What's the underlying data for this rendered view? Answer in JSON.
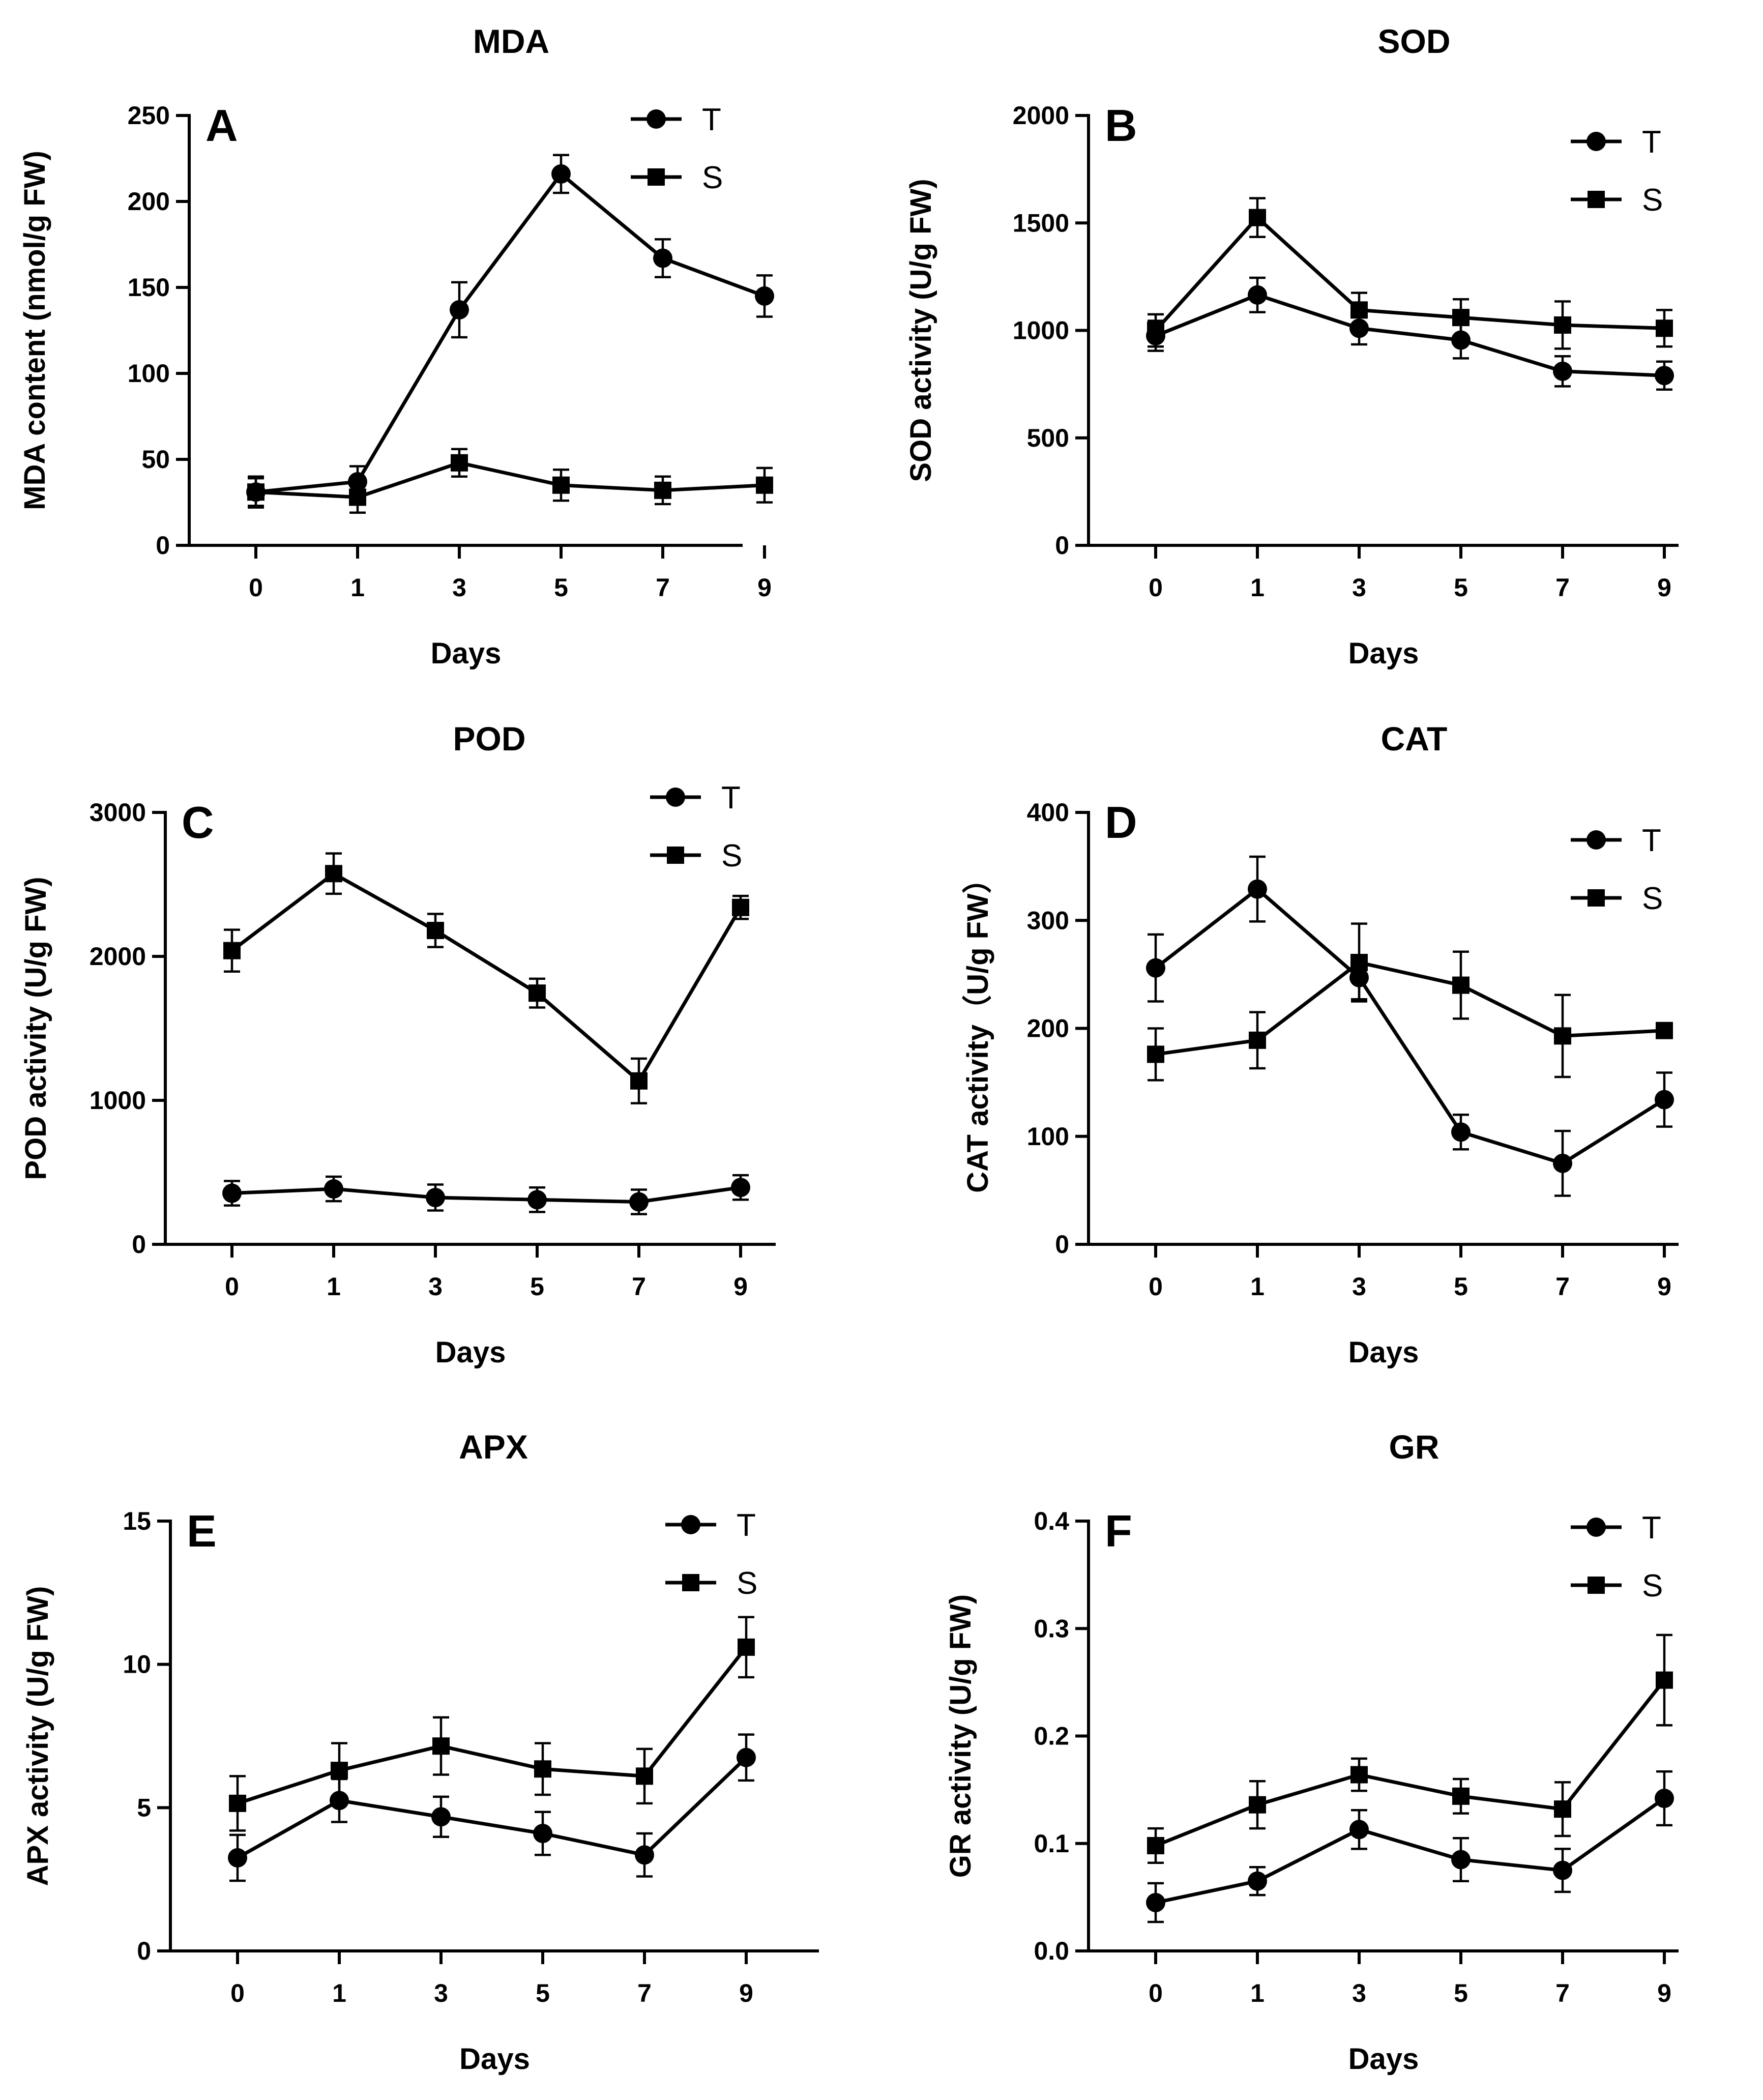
{
  "colors": {
    "line": "#000000",
    "background": "#ffffff"
  },
  "chart_data": [
    {
      "type": "line",
      "panel": "A",
      "title": "MDA",
      "xlabel": "Days",
      "ylabel": "MDA content (nmol/g FW)",
      "categories": [
        "0",
        "1",
        "3",
        "5",
        "7",
        "9"
      ],
      "ylim": [
        0,
        250
      ],
      "yticks": [
        0,
        50,
        100,
        150,
        200,
        250
      ],
      "legend_position": "top-right",
      "series": [
        {
          "name": "T",
          "marker": "circle",
          "values": [
            31,
            37,
            137,
            216,
            167,
            145
          ],
          "errors": [
            9,
            9,
            16,
            11,
            11,
            12
          ]
        },
        {
          "name": "S",
          "marker": "square",
          "values": [
            31,
            28,
            48,
            35,
            32,
            35
          ],
          "errors": [
            8,
            9,
            8,
            9,
            8,
            10
          ]
        }
      ]
    },
    {
      "type": "line",
      "panel": "B",
      "title": "SOD",
      "xlabel": "Days",
      "ylabel": "SOD activity (U/g FW)",
      "categories": [
        "0",
        "1",
        "3",
        "5",
        "7",
        "9"
      ],
      "ylim": [
        0,
        2000
      ],
      "yticks": [
        0,
        500,
        1000,
        1500,
        2000
      ],
      "legend_position": "top-right",
      "series": [
        {
          "name": "T",
          "marker": "circle",
          "values": [
            975,
            1165,
            1010,
            955,
            810,
            790
          ],
          "errors": [
            70,
            80,
            75,
            85,
            70,
            65
          ]
        },
        {
          "name": "S",
          "marker": "square",
          "values": [
            1000,
            1525,
            1095,
            1060,
            1025,
            1010
          ],
          "errors": [
            75,
            90,
            80,
            85,
            110,
            85
          ]
        }
      ]
    },
    {
      "type": "line",
      "panel": "C",
      "title": "POD",
      "xlabel": "Days",
      "ylabel": "POD activity (U/g FW)",
      "categories": [
        "0",
        "1",
        "3",
        "5",
        "7",
        "9"
      ],
      "ylim": [
        0,
        3000
      ],
      "yticks": [
        0,
        1000,
        2000,
        3000
      ],
      "legend_position": "top-right",
      "series": [
        {
          "name": "T",
          "marker": "circle",
          "values": [
            355,
            385,
            325,
            310,
            295,
            395
          ],
          "errors": [
            85,
            85,
            90,
            85,
            85,
            85
          ]
        },
        {
          "name": "S",
          "marker": "square",
          "values": [
            2040,
            2575,
            2180,
            1745,
            1135,
            2340
          ],
          "errors": [
            145,
            140,
            115,
            100,
            155,
            80
          ]
        }
      ]
    },
    {
      "type": "line",
      "panel": "D",
      "title": "CAT",
      "xlabel": "Days",
      "ylabel": "CAT activity（U/g FW）",
      "categories": [
        "0",
        "1",
        "3",
        "5",
        "7",
        "9"
      ],
      "ylim": [
        0,
        400
      ],
      "yticks": [
        0,
        100,
        200,
        300,
        400
      ],
      "legend_position": "top-right",
      "series": [
        {
          "name": "T",
          "marker": "circle",
          "values": [
            256,
            329,
            247,
            104,
            75,
            134
          ],
          "errors": [
            31,
            30,
            20,
            16,
            30,
            25
          ]
        },
        {
          "name": "S",
          "marker": "square",
          "values": [
            176,
            189,
            261,
            240,
            193,
            198
          ],
          "errors": [
            24,
            26,
            36,
            31,
            38,
            4
          ]
        }
      ]
    },
    {
      "type": "line",
      "panel": "E",
      "title": "APX",
      "xlabel": "Days",
      "ylabel": "APX activity (U/g FW)",
      "categories": [
        "0",
        "1",
        "3",
        "5",
        "7",
        "9"
      ],
      "ylim": [
        0,
        15
      ],
      "yticks": [
        0,
        5,
        10,
        15
      ],
      "legend_position": "top-right",
      "series": [
        {
          "name": "T",
          "marker": "circle",
          "values": [
            3.25,
            5.25,
            4.68,
            4.1,
            3.35,
            6.75
          ],
          "errors": [
            0.8,
            0.75,
            0.7,
            0.75,
            0.75,
            0.8
          ]
        },
        {
          "name": "S",
          "marker": "square",
          "values": [
            5.15,
            6.3,
            7.15,
            6.35,
            6.1,
            10.6
          ],
          "errors": [
            0.95,
            0.95,
            1.0,
            0.9,
            0.95,
            1.05
          ]
        }
      ]
    },
    {
      "type": "line",
      "panel": "F",
      "title": "GR",
      "xlabel": "Days",
      "ylabel": "GR activity (U/g FW)",
      "categories": [
        "0",
        "1",
        "3",
        "5",
        "7",
        "9"
      ],
      "ylim": [
        0,
        0.4
      ],
      "yticks": [
        "0.0",
        "0.1",
        "0.2",
        "0.3",
        "0.4"
      ],
      "legend_position": "top-right",
      "series": [
        {
          "name": "T",
          "marker": "circle",
          "values": [
            0.045,
            0.065,
            0.113,
            0.085,
            0.075,
            0.142
          ],
          "errors": [
            0.018,
            0.013,
            0.018,
            0.02,
            0.02,
            0.025
          ]
        },
        {
          "name": "S",
          "marker": "square",
          "values": [
            0.098,
            0.136,
            0.164,
            0.144,
            0.132,
            0.252
          ],
          "errors": [
            0.016,
            0.022,
            0.015,
            0.016,
            0.025,
            0.042
          ]
        }
      ]
    }
  ]
}
